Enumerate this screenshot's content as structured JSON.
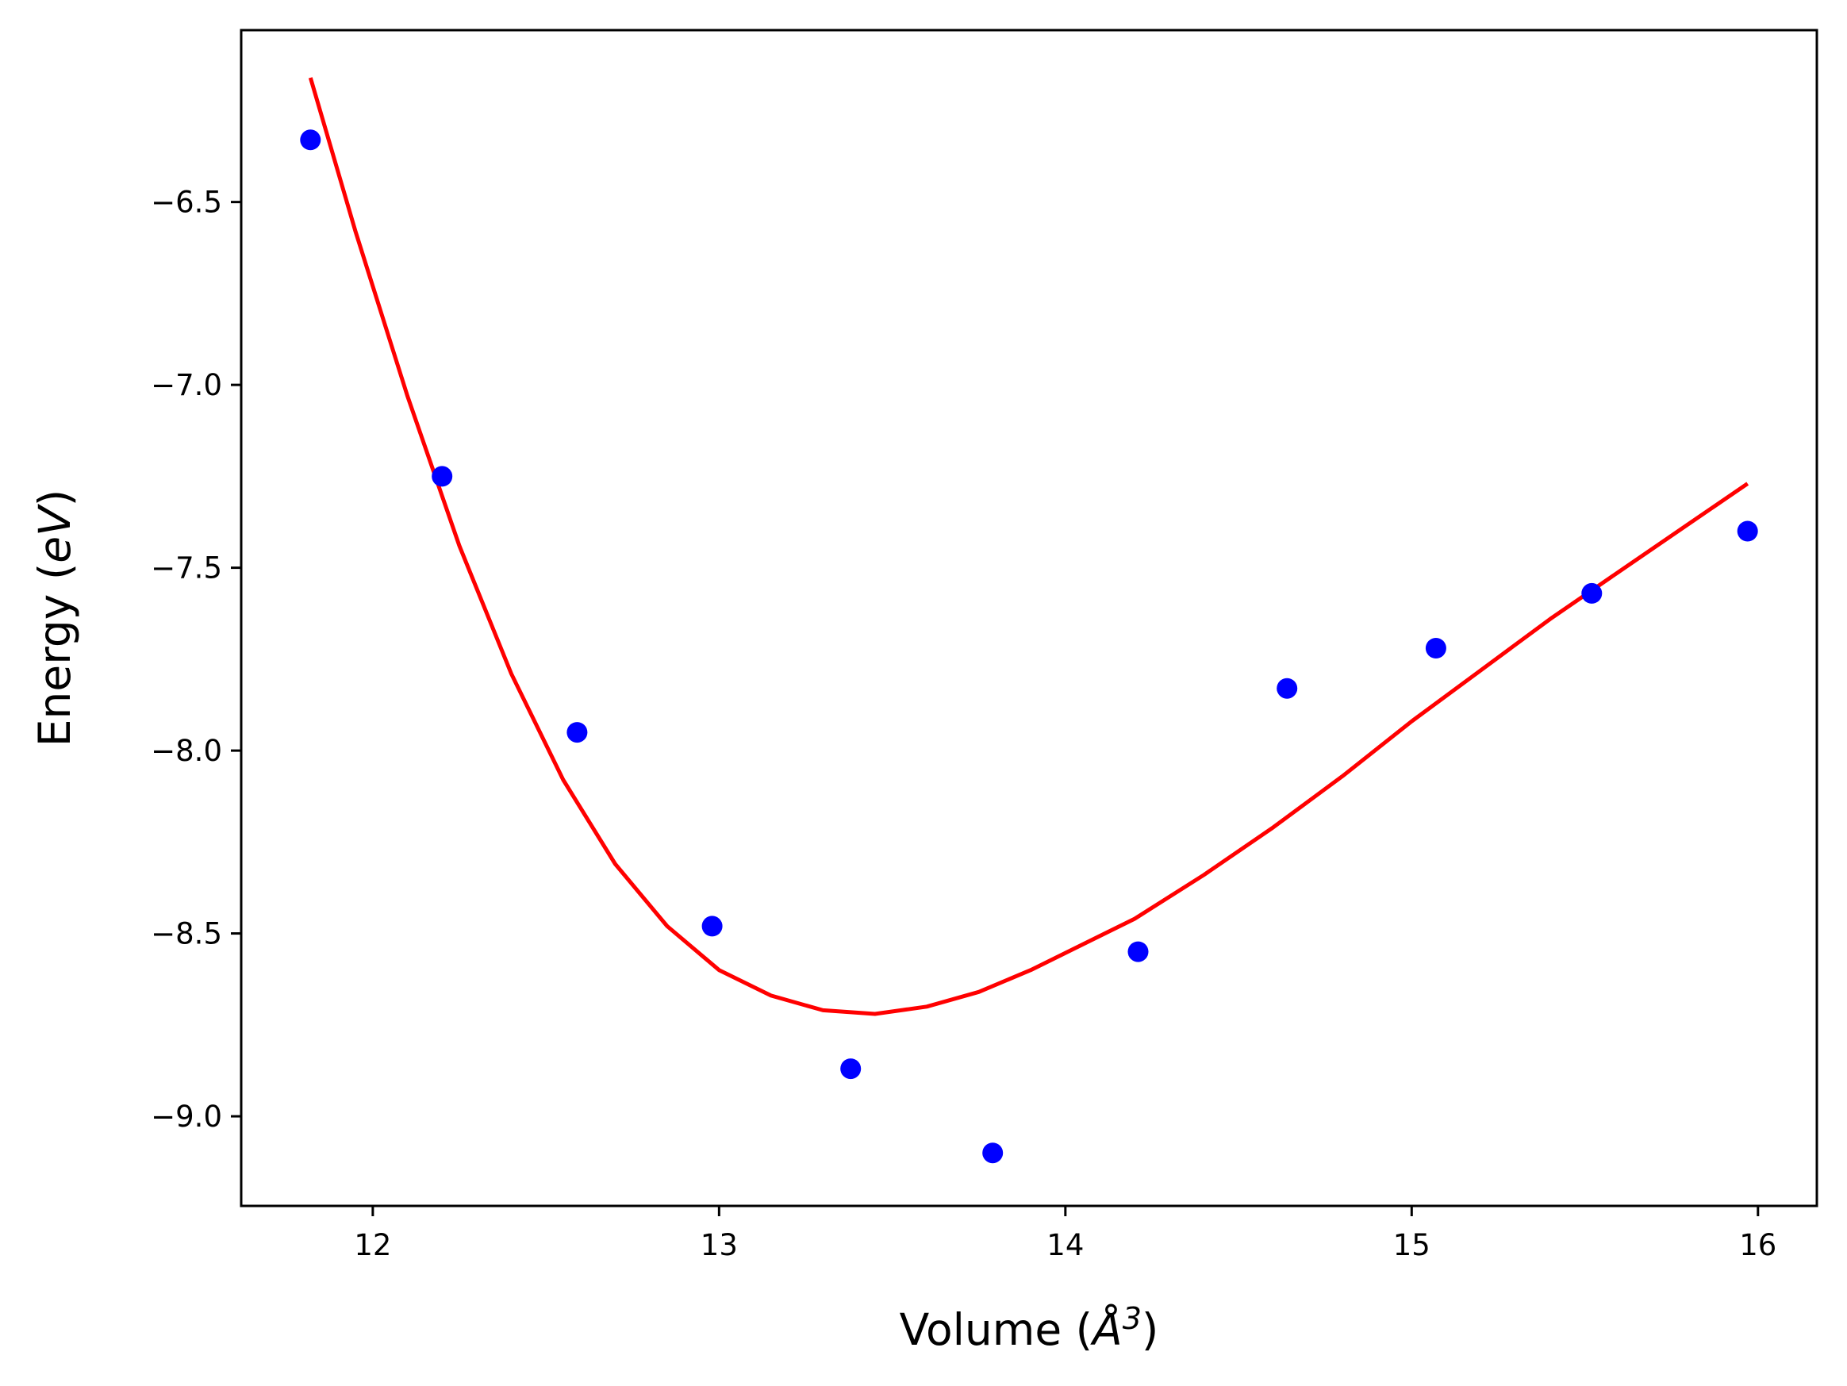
{
  "chart_data": {
    "type": "scatter",
    "xlabel": "Volume (Å³)",
    "xlabel_parts": {
      "main": "Volume (",
      "symbol": "Å",
      "exponent": "3",
      "close": ")"
    },
    "ylabel": "Energy (eV)",
    "ylabel_parts": {
      "main": "Energy (",
      "italic": "eV",
      "close": ")"
    },
    "xlim": [
      11.62,
      16.17
    ],
    "ylim": [
      -9.245,
      -6.03
    ],
    "xticks": [
      12,
      13,
      14,
      15,
      16
    ],
    "xtick_labels": [
      "12",
      "13",
      "14",
      "15",
      "16"
    ],
    "yticks": [
      -6.5,
      -7.0,
      -7.5,
      -8.0,
      -8.5,
      -9.0
    ],
    "ytick_labels": [
      "−6.5",
      "−7.0",
      "−7.5",
      "−8.0",
      "−8.5",
      "−9.0"
    ],
    "grid": false,
    "legend": "none",
    "series": [
      {
        "kind": "points",
        "color": "#0000ff",
        "x": [
          11.82,
          12.2,
          12.59,
          12.98,
          13.38,
          13.79,
          14.21,
          14.64,
          15.07,
          15.52,
          15.97
        ],
        "y": [
          -6.33,
          -7.25,
          -7.95,
          -8.48,
          -8.87,
          -9.1,
          -8.55,
          -7.83,
          -7.72,
          -7.57,
          -7.4
        ]
      },
      {
        "kind": "line",
        "color": "#ff0000",
        "x": [
          11.82,
          11.95,
          12.1,
          12.25,
          12.4,
          12.55,
          12.7,
          12.85,
          13.0,
          13.15,
          13.3,
          13.45,
          13.6,
          13.75,
          13.9,
          14.05,
          14.2,
          14.4,
          14.6,
          14.8,
          15.0,
          15.2,
          15.4,
          15.6,
          15.8,
          15.97
        ],
        "y": [
          -6.16,
          -6.58,
          -7.03,
          -7.44,
          -7.79,
          -8.08,
          -8.31,
          -8.48,
          -8.6,
          -8.67,
          -8.71,
          -8.72,
          -8.7,
          -8.66,
          -8.6,
          -8.53,
          -8.46,
          -8.34,
          -8.21,
          -8.07,
          -7.92,
          -7.78,
          -7.64,
          -7.51,
          -7.38,
          -7.27
        ]
      }
    ]
  }
}
